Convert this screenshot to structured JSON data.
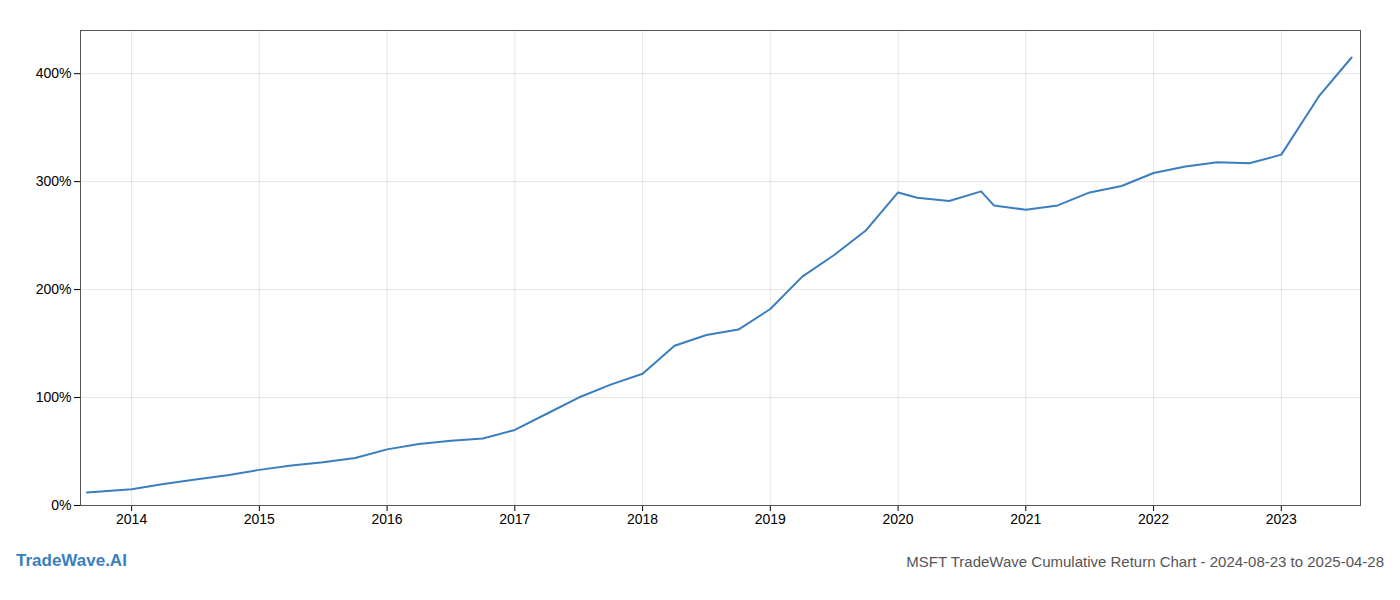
{
  "chart_data": {
    "type": "line",
    "title": "MSFT TradeWave Cumulative Return Chart - 2024-08-23 to 2025-04-28",
    "annotations": [
      "TradeWave.AI"
    ],
    "color": "#3a7ebf",
    "x": [
      2013.65,
      2014.0,
      2014.25,
      2014.5,
      2014.75,
      2015.0,
      2015.25,
      2015.5,
      2015.75,
      2016.0,
      2016.25,
      2016.5,
      2016.75,
      2017.0,
      2017.25,
      2017.5,
      2017.75,
      2018.0,
      2018.25,
      2018.5,
      2018.75,
      2019.0,
      2019.25,
      2019.5,
      2019.75,
      2020.0,
      2020.15,
      2020.4,
      2020.65,
      2020.75,
      2021.0,
      2021.25,
      2021.5,
      2021.75,
      2022.0,
      2022.25,
      2022.5,
      2022.75,
      2023.0,
      2023.3,
      2023.55
    ],
    "values": [
      12,
      15,
      20,
      24,
      28,
      33,
      37,
      40,
      44,
      52,
      57,
      60,
      62,
      70,
      85,
      100,
      112,
      122,
      148,
      158,
      163,
      182,
      212,
      232,
      255,
      290,
      285,
      282,
      291,
      278,
      274,
      278,
      290,
      296,
      308,
      314,
      318,
      317,
      325,
      380,
      415
    ],
    "xlim": [
      2013.6,
      2023.62
    ],
    "xticks": [
      2014,
      2015,
      2016,
      2017,
      2018,
      2019,
      2020,
      2021,
      2022,
      2023
    ],
    "ylim": [
      0,
      440
    ],
    "yticks": [
      {
        "value": 0,
        "label": "0%"
      },
      {
        "value": 100,
        "label": "100%"
      },
      {
        "value": 200,
        "label": "200%"
      },
      {
        "value": 300,
        "label": "300%"
      },
      {
        "value": 400,
        "label": "400%"
      }
    ],
    "grid": true
  }
}
